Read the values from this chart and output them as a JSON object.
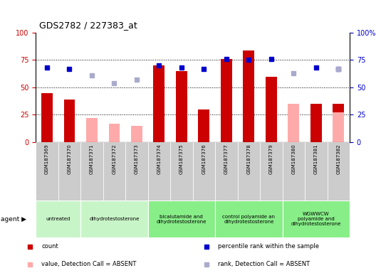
{
  "title": "GDS2782 / 227383_at",
  "samples": [
    "GSM187369",
    "GSM187370",
    "GSM187371",
    "GSM187372",
    "GSM187373",
    "GSM187374",
    "GSM187375",
    "GSM187376",
    "GSM187377",
    "GSM187378",
    "GSM187379",
    "GSM187380",
    "GSM187381",
    "GSM187382"
  ],
  "count": [
    45,
    39,
    null,
    null,
    null,
    70,
    65,
    30,
    76,
    84,
    60,
    null,
    35,
    35
  ],
  "count_absent": [
    null,
    null,
    22,
    17,
    15,
    null,
    null,
    null,
    null,
    null,
    null,
    35,
    null,
    27
  ],
  "rank": [
    68,
    67,
    null,
    null,
    null,
    70,
    68,
    67,
    76,
    75,
    76,
    null,
    68,
    67
  ],
  "rank_absent": [
    null,
    null,
    61,
    54,
    57,
    null,
    null,
    null,
    null,
    null,
    null,
    63,
    null,
    67
  ],
  "groups": [
    {
      "label": "untreated",
      "start": 0,
      "end": 2,
      "color": "#c8f5c8"
    },
    {
      "label": "dihydrotestosterone",
      "start": 2,
      "end": 5,
      "color": "#c8f5c8"
    },
    {
      "label": "bicalutamide and\ndihydrotestosterone",
      "start": 5,
      "end": 8,
      "color": "#88ee88"
    },
    {
      "label": "control polyamide an\ndihydrotestosterone",
      "start": 8,
      "end": 11,
      "color": "#88ee88"
    },
    {
      "label": "WGWWCW\npolyamide and\ndihydrotestosterone",
      "start": 11,
      "end": 14,
      "color": "#88ee88"
    }
  ],
  "ylim": [
    0,
    100
  ],
  "yticks": [
    0,
    25,
    50,
    75,
    100
  ],
  "grid_lines": [
    25,
    50,
    75
  ],
  "count_color": "#cc0000",
  "count_absent_color": "#ffaaaa",
  "rank_color": "#0000cc",
  "rank_absent_color": "#aaaacc",
  "left_axis_color": "#cc0000",
  "right_axis_color": "#0000cc",
  "legend": [
    {
      "color": "#cc0000",
      "label": "count"
    },
    {
      "color": "#0000cc",
      "label": "percentile rank within the sample"
    },
    {
      "color": "#ffaaaa",
      "label": "value, Detection Call = ABSENT"
    },
    {
      "color": "#aaaacc",
      "label": "rank, Detection Call = ABSENT"
    }
  ]
}
